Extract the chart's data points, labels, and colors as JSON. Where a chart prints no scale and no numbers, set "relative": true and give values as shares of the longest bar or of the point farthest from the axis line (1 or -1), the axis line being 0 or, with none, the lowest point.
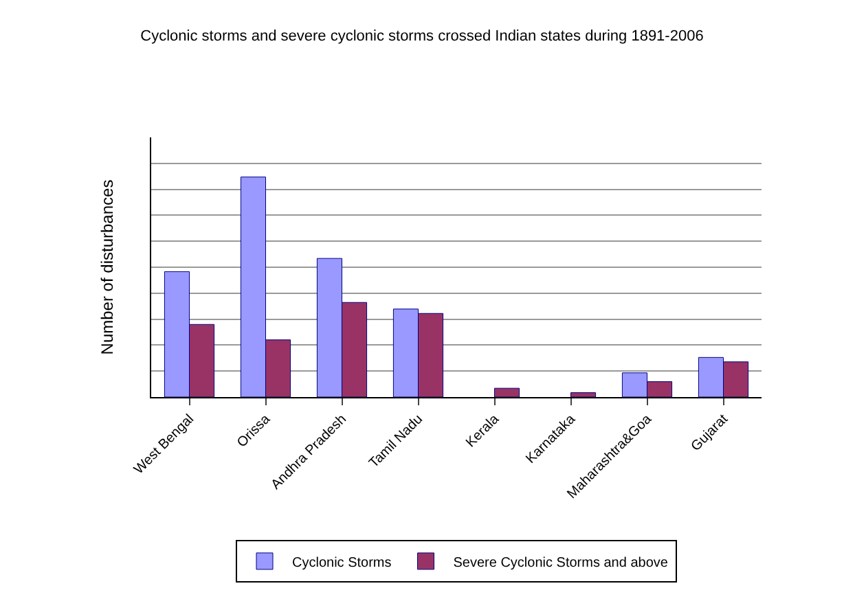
{
  "chart_data": {
    "type": "bar",
    "title": "Cyclonic storms and severe cyclonic storms crossed Indian states during 1891-2006",
    "ylabel": "Number of disturbances",
    "categories": [
      "West Bengal",
      "Orissa",
      "Andhra Pradesh",
      "Tamil Nadu",
      "Kerala",
      "Karnataka",
      "Maharashtra&Goa",
      "Gujarat"
    ],
    "relative": true,
    "grid": "y",
    "legend": "bottom",
    "series": [
      {
        "name": "Cyclonic Storms",
        "color": "#9999ff",
        "values": [
          0.57,
          1,
          0.63,
          0.4,
          0,
          0,
          0.11,
          0.18
        ]
      },
      {
        "name": "Severe Cyclonic Storms and above",
        "color": "#993366",
        "values": [
          0.33,
          0.26,
          0.43,
          0.38,
          0.04,
          0.02,
          0.07,
          0.16
        ]
      }
    ]
  }
}
